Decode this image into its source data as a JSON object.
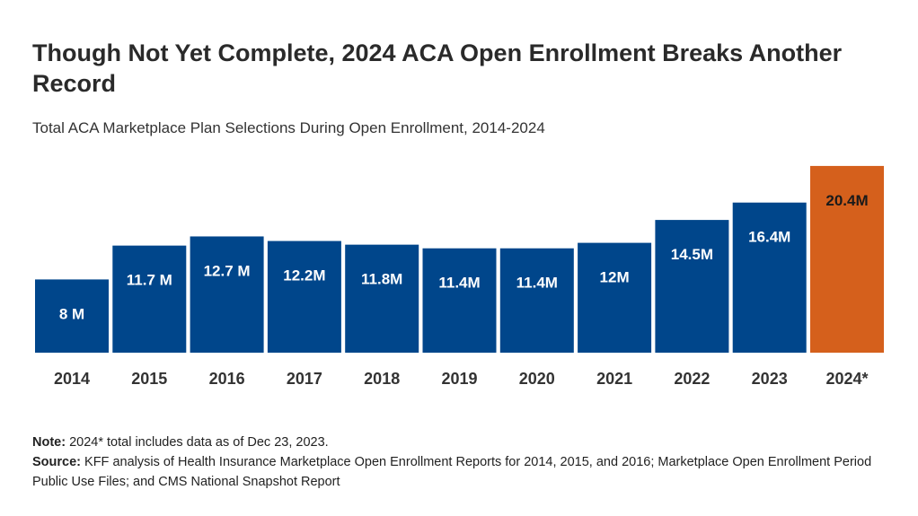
{
  "title": "Though Not Yet Complete, 2024 ACA Open Enrollment Breaks Another Record",
  "subtitle": "Total ACA Marketplace Plan Selections During Open Enrollment, 2014-2024",
  "colors": {
    "normal": "#00468b",
    "highlight": "#d5601c",
    "label_light": "#ffffff",
    "label_dark": "#1a1a1a"
  },
  "chart_data": {
    "type": "bar",
    "categories": [
      "2014",
      "2015",
      "2016",
      "2017",
      "2018",
      "2019",
      "2020",
      "2021",
      "2022",
      "2023",
      "2024*"
    ],
    "values": [
      8.0,
      11.7,
      12.7,
      12.2,
      11.8,
      11.4,
      11.4,
      12.0,
      14.5,
      16.4,
      20.4
    ],
    "data_labels": [
      "8 M",
      "11.7 M",
      "12.7 M",
      "12.2M",
      "11.8M",
      "11.4M",
      "11.4M",
      "12M",
      "14.5M",
      "16.4M",
      "20.4M"
    ],
    "highlight_category": "2024*",
    "ylim": [
      0,
      21
    ],
    "xlabel": "",
    "ylabel": "",
    "grid": false,
    "legend": "none"
  },
  "notes": {
    "note_label": "Note:",
    "note_text": " 2024* total includes data as of Dec 23, 2023.",
    "source_label": "Source:",
    "source_text": " KFF analysis of Health Insurance Marketplace Open Enrollment Reports for 2014, 2015, and 2016; Marketplace Open Enrollment Period Public Use Files; and CMS National Snapshot Report"
  }
}
